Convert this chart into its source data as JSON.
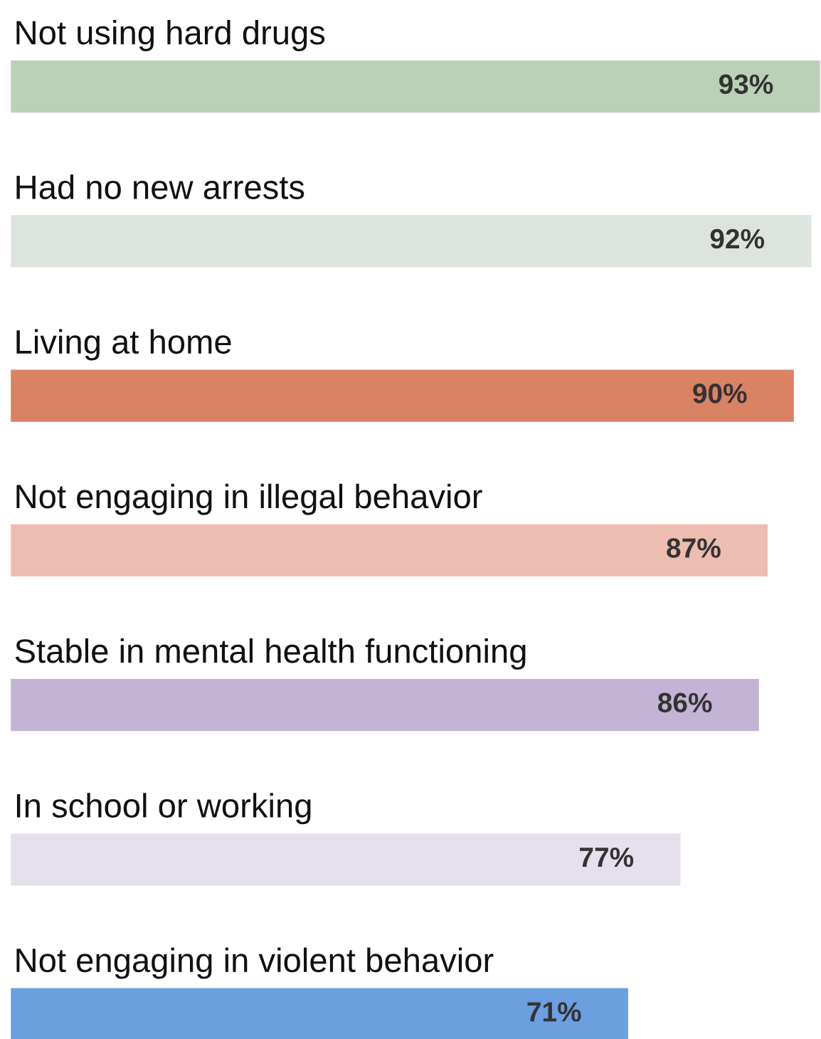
{
  "chart_data": {
    "type": "bar",
    "orientation": "horizontal",
    "categories": [
      "Not using hard drugs",
      "Had no new arrests",
      "Living at home",
      "Not engaging in illegal behavior",
      "Stable in mental health functioning",
      "In school or working",
      "Not engaging in violent behavior"
    ],
    "values": [
      93,
      92,
      90,
      87,
      86,
      77,
      71
    ],
    "value_labels": [
      "93%",
      "92%",
      "90%",
      "87%",
      "86%",
      "77%",
      "71%"
    ],
    "colors": [
      "#bad0b7",
      "#dde4dd",
      "#da8264",
      "#ecbdb0",
      "#c3b3d5",
      "#e5e0ec",
      "#6b9fdf"
    ]
  }
}
